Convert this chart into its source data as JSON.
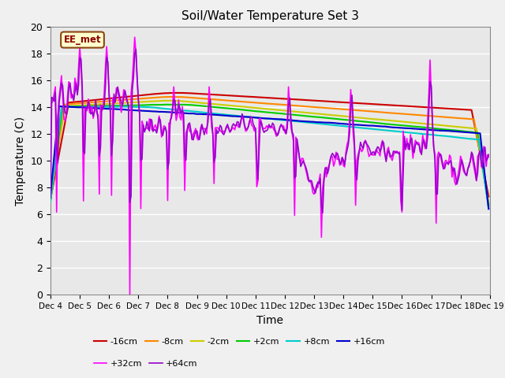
{
  "title": "Soil/Water Temperature Set 3",
  "xlabel": "Time",
  "ylabel": "Temperature (C)",
  "ylim": [
    0,
    20
  ],
  "yticks": [
    0,
    2,
    4,
    6,
    8,
    10,
    12,
    14,
    16,
    18,
    20
  ],
  "plot_bg_color": "#e8e8e8",
  "fig_bg_color": "#f0f0f0",
  "grid_color": "white",
  "annotation_text": "EE_met",
  "annotation_bg": "#ffffcc",
  "annotation_border": "#8b4513",
  "series_colors": {
    "-16cm": "#cc0000",
    "-8cm": "#ff8800",
    "-2cm": "#cccc00",
    "+2cm": "#00cc00",
    "+8cm": "#00cccc",
    "+16cm": "#0000cc",
    "+32cm": "#ff00ff",
    "+64cm": "#9900cc"
  },
  "n_points": 360,
  "xtick_labels": [
    "Dec 4",
    "Dec 5",
    "Dec 6",
    "Dec 7",
    "Dec 8",
    "Dec 9",
    "Dec 10",
    "Dec 11",
    "Dec 12",
    "Dec 13",
    "Dec 14",
    "Dec 15",
    "Dec 16",
    "Dec 17",
    "Dec 18",
    "Dec 19"
  ],
  "xtick_positions": [
    0,
    24,
    48,
    72,
    96,
    120,
    144,
    168,
    192,
    216,
    240,
    264,
    288,
    312,
    336,
    360
  ]
}
